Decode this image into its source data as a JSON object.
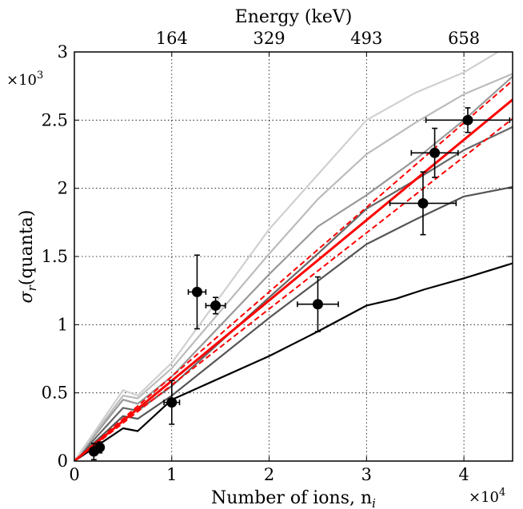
{
  "chart_data": {
    "type": "line",
    "xlabel": "Number of ions, n",
    "xlabel_sub": "i",
    "ylabel": "σ",
    "ylabel_sub": "r",
    "ylabel_unit": "(quanta)",
    "top_axis_label": "Energy (keV)",
    "x_multiplier": "×10",
    "x_multiplier_exp": "4",
    "y_multiplier": "×10",
    "y_multiplier_exp": "3",
    "xlim": [
      0,
      45000
    ],
    "ylim": [
      0,
      3000
    ],
    "grid": true,
    "x_ticks": [
      {
        "value": 0,
        "label": "0"
      },
      {
        "value": 10000,
        "label": "1"
      },
      {
        "value": 20000,
        "label": "2"
      },
      {
        "value": 30000,
        "label": "3"
      },
      {
        "value": 40000,
        "label": "4"
      }
    ],
    "y_ticks": [
      {
        "value": 0,
        "label": "0"
      },
      {
        "value": 500,
        "label": "0.5"
      },
      {
        "value": 1000,
        "label": "1"
      },
      {
        "value": 1500,
        "label": "1.5"
      },
      {
        "value": 2000,
        "label": "2"
      },
      {
        "value": 2500,
        "label": "2.5"
      },
      {
        "value": 3000,
        "label": "3"
      }
    ],
    "top_ticks": [
      {
        "value": 10000,
        "label": "164"
      },
      {
        "value": 20000,
        "label": "329"
      },
      {
        "value": 30000,
        "label": "493"
      },
      {
        "value": 40000,
        "label": "658"
      }
    ],
    "series": [
      {
        "color": "#000000",
        "width": 2.2,
        "style": "solid",
        "x": [
          0,
          5000,
          6500,
          10000,
          20000,
          25000,
          30000,
          33000,
          36000,
          40000,
          45000
        ],
        "y": [
          0,
          240,
          220,
          450,
          770,
          950,
          1140,
          1190,
          1260,
          1340,
          1450
        ]
      },
      {
        "color": "#555555",
        "width": 2.2,
        "style": "solid",
        "x": [
          0,
          5000,
          6500,
          10000,
          20000,
          25000,
          30000,
          35000,
          40000,
          45000
        ],
        "y": [
          0,
          330,
          310,
          480,
          1050,
          1320,
          1590,
          1770,
          1940,
          2010
        ]
      },
      {
        "color": "#666666",
        "width": 2.2,
        "style": "solid",
        "x": [
          0,
          5000,
          6500,
          10000,
          20000,
          25000,
          30000,
          35000,
          40000,
          45000
        ],
        "y": [
          0,
          390,
          370,
          550,
          1200,
          1520,
          1850,
          2060,
          2280,
          2450
        ]
      },
      {
        "color": "#999999",
        "width": 2.2,
        "style": "solid",
        "x": [
          0,
          5000,
          6500,
          10000,
          20000,
          25000,
          30000,
          35000,
          40000,
          45000
        ],
        "y": [
          0,
          450,
          420,
          620,
          1370,
          1720,
          1950,
          2210,
          2500,
          2820
        ]
      },
      {
        "color": "#bbbbbb",
        "width": 2.2,
        "style": "solid",
        "x": [
          0,
          5000,
          6500,
          10000,
          20000,
          25000,
          30000,
          35000,
          40000,
          45000
        ],
        "y": [
          0,
          480,
          460,
          680,
          1520,
          1920,
          2250,
          2480,
          2690,
          2840
        ]
      },
      {
        "color": "#d0d0d0",
        "width": 2.2,
        "style": "solid",
        "x": [
          0,
          5000,
          6500,
          10000,
          20000,
          25000,
          30000,
          35000,
          40000,
          43500
        ],
        "y": [
          0,
          520,
          480,
          720,
          1700,
          2100,
          2500,
          2700,
          2850,
          3000
        ]
      },
      {
        "color": "#ff0000",
        "width": 3,
        "style": "solid",
        "x": [
          0,
          45000
        ],
        "y": [
          0,
          2650
        ]
      },
      {
        "color": "#ff0000",
        "width": 2,
        "style": "dashed",
        "x": [
          0,
          45000
        ],
        "y": [
          0,
          2790
        ]
      },
      {
        "color": "#ff0000",
        "width": 2,
        "style": "dashed",
        "x": [
          0,
          45000
        ],
        "y": [
          0,
          2510
        ]
      }
    ],
    "points": [
      {
        "x": 2000,
        "y": 70,
        "xerr": 300,
        "yerr": 60
      },
      {
        "x": 2600,
        "y": 100,
        "xerr": 400,
        "yerr": 40
      },
      {
        "x": 10000,
        "y": 430,
        "xerr": 800,
        "yerr": 160
      },
      {
        "x": 12600,
        "y": 1240,
        "xerr": 900,
        "yerr": 270
      },
      {
        "x": 14500,
        "y": 1140,
        "xerr": 1000,
        "yerr": 60
      },
      {
        "x": 25000,
        "y": 1150,
        "xerr": 2100,
        "yerr": 200
      },
      {
        "x": 35800,
        "y": 1890,
        "xerr": 3400,
        "yerr": 230
      },
      {
        "x": 37000,
        "y": 2260,
        "xerr": 2400,
        "yerr": 180
      },
      {
        "x": 40400,
        "y": 2500,
        "xerr": 4300,
        "yerr": 90
      }
    ]
  }
}
